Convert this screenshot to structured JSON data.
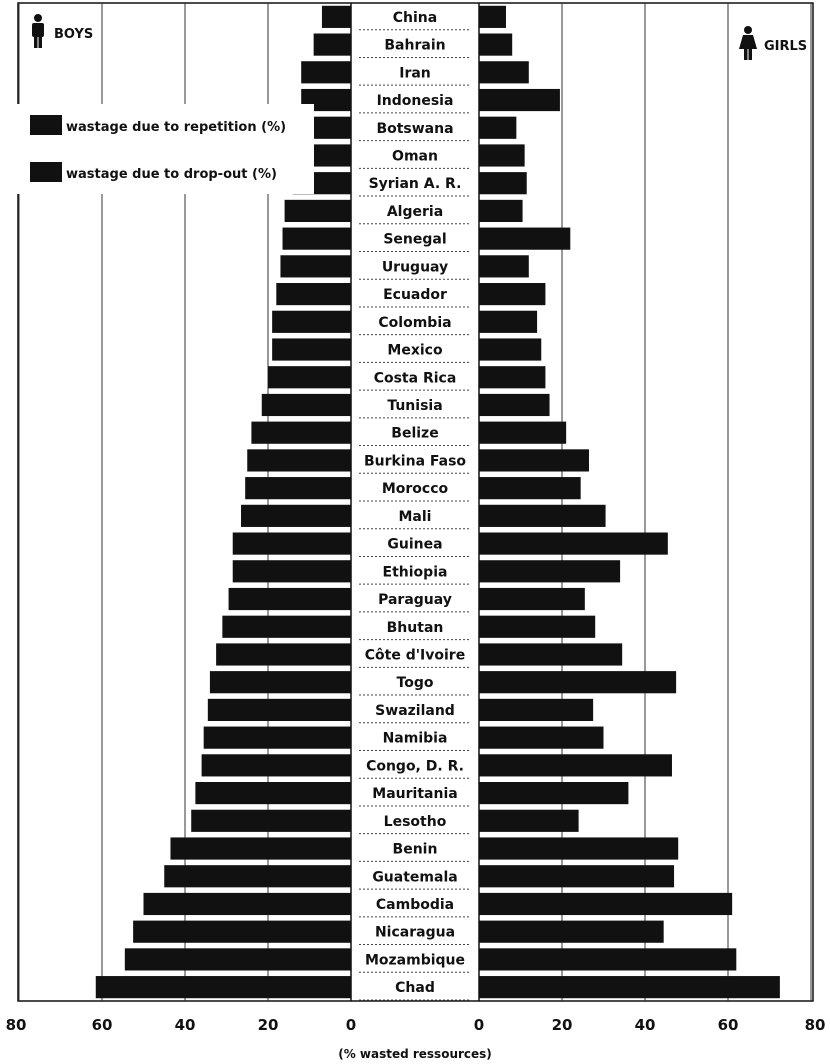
{
  "chart_data": {
    "type": "bar",
    "orientation": "horizontal-population-pyramid",
    "categories": [
      "China",
      "Bahrain",
      "Iran",
      "Indonesia",
      "Botswana",
      "Oman",
      "Syrian A. R.",
      "Algeria",
      "Senegal",
      "Uruguay",
      "Ecuador",
      "Colombia",
      "Mexico",
      "Costa Rica",
      "Tunisia",
      "Belize",
      "Burkina Faso",
      "Morocco",
      "Mali",
      "Guinea",
      "Ethiopia",
      "Paraguay",
      "Bhutan",
      "Côte d'Ivoire",
      "Togo",
      "Swaziland",
      "Namibia",
      "Congo, D. R.",
      "Mauritania",
      "Lesotho",
      "Benin",
      "Guatemala",
      "Cambodia",
      "Nicaragua",
      "Mozambique",
      "Chad"
    ],
    "series": [
      {
        "name": "BOYS",
        "side": "left",
        "values": [
          7,
          9,
          12,
          12,
          13,
          13.5,
          14,
          16,
          16.5,
          17,
          18,
          19,
          19,
          20,
          21.5,
          24,
          25,
          25.5,
          26.5,
          28.5,
          28.5,
          29.5,
          31,
          32.5,
          34,
          34.5,
          35.5,
          36,
          37.5,
          38.5,
          43.5,
          45,
          50,
          52.5,
          54.5,
          61.5
        ]
      },
      {
        "name": "GIRLS",
        "side": "right",
        "values": [
          6.5,
          8,
          12,
          19.5,
          9,
          11,
          11.5,
          10.5,
          22,
          12,
          16,
          14,
          15,
          16,
          17,
          21,
          26.5,
          24.5,
          30.5,
          45.5,
          34,
          25.5,
          28,
          34.5,
          47.5,
          27.5,
          30,
          46.5,
          36,
          24,
          48,
          47,
          61,
          44.5,
          62,
          72.5
        ]
      }
    ],
    "legend": [
      "wastage due to repetition (%)",
      "wastage due to drop-out (%)"
    ],
    "legend_position": "top-left",
    "x_ticks_left": [
      "80",
      "60",
      "40",
      "20",
      "0"
    ],
    "x_ticks_right": [
      "0",
      "20",
      "40",
      "60",
      "80"
    ],
    "xlabel": "(% wasted ressources)",
    "xlim": [
      0,
      80
    ],
    "grid": true,
    "colors": {
      "bar": "#111111",
      "grid": "#333333",
      "background": "#ffffff"
    }
  },
  "labels": {
    "boys": "BOYS",
    "girls": "GIRLS"
  }
}
